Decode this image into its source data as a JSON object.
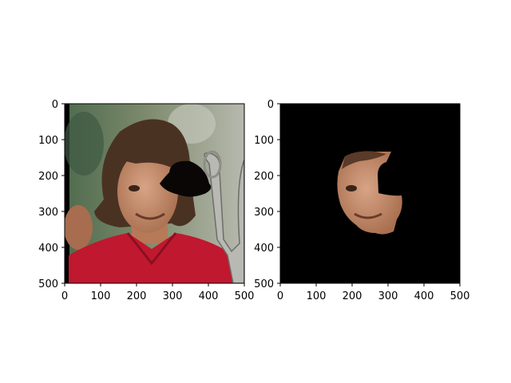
{
  "figure": {
    "panels": [
      {
        "name": "original-with-occlusion",
        "image": "photo of a man with long brown hair in a red polo shirt holding a silver trophy, with a black blob occluding part of his face",
        "x_ticks": [
          "0",
          "100",
          "200",
          "300",
          "400",
          "500"
        ],
        "y_ticks": [
          "0",
          "100",
          "200",
          "300",
          "400",
          "500"
        ]
      },
      {
        "name": "masked-face",
        "image": "same photo with everything blacked out except the face region",
        "x_ticks": [
          "0",
          "100",
          "200",
          "300",
          "400",
          "500"
        ],
        "y_ticks": [
          "0",
          "100",
          "200",
          "300",
          "400",
          "500"
        ]
      }
    ]
  },
  "colors": {
    "background": "#000000",
    "shirt": "#c0182e",
    "skin": "#c48a6a",
    "hair": "#4a3222"
  }
}
